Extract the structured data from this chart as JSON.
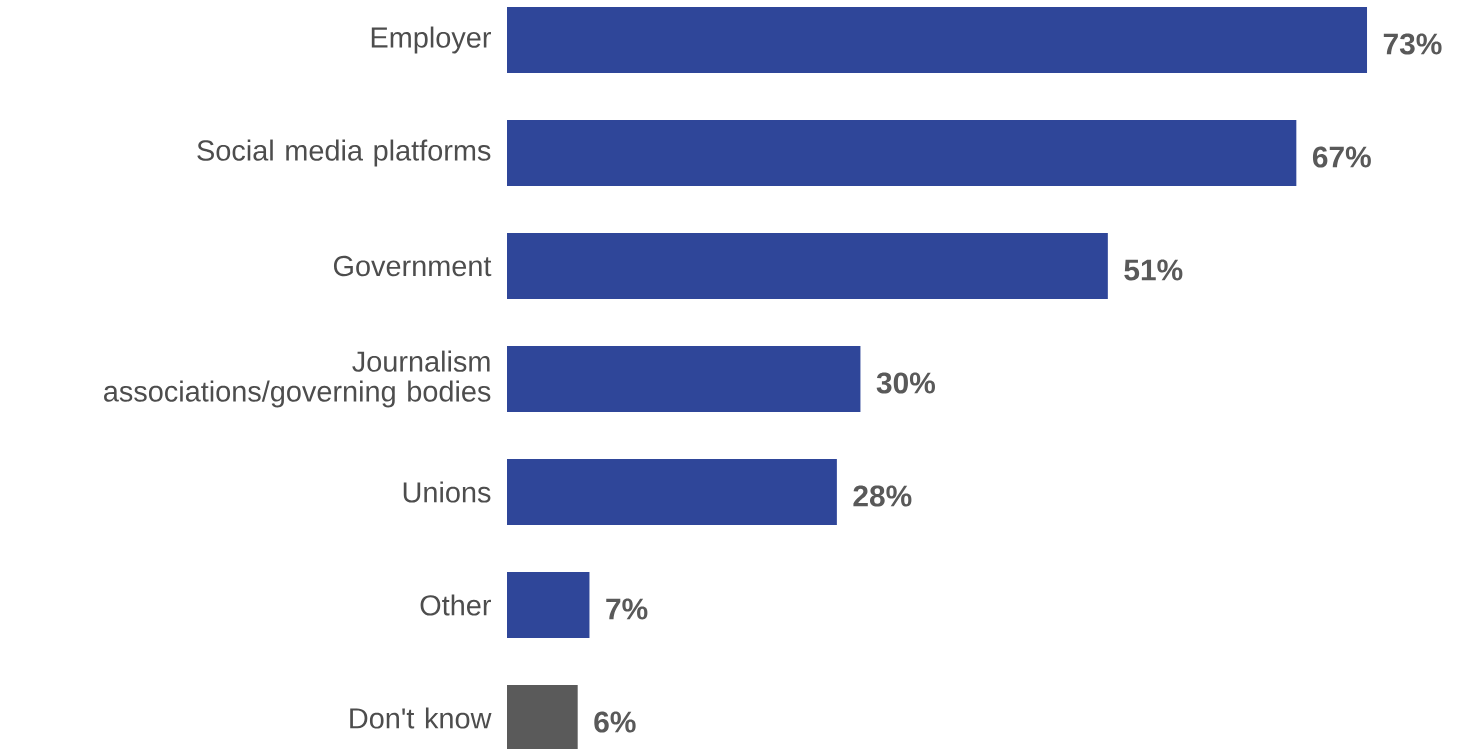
{
  "chart_data": {
    "type": "bar",
    "orientation": "horizontal",
    "categories": [
      "Employer",
      "Social media platforms",
      "Government",
      "Journalism associations/governing bodies",
      "Unions",
      "Other",
      "Don't know"
    ],
    "values": [
      73,
      67,
      51,
      30,
      28,
      7,
      6
    ],
    "colors": [
      "#2f4699",
      "#2f4699",
      "#2f4699",
      "#2f4699",
      "#2f4699",
      "#2f4699",
      "#5a5a5a"
    ],
    "value_labels": [
      "73%",
      "67%",
      "51%",
      "30%",
      "28%",
      "7%",
      "6%"
    ]
  }
}
